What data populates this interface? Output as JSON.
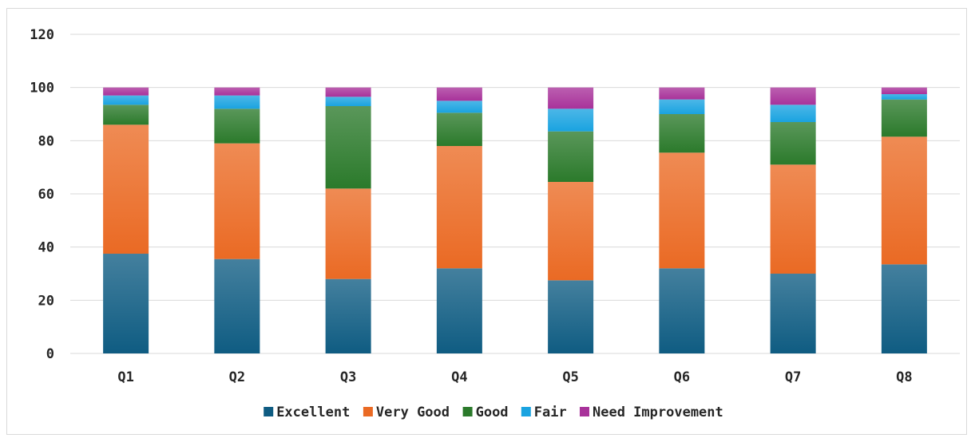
{
  "chart_data": {
    "type": "bar",
    "stacked": true,
    "categories": [
      "Q1",
      "Q2",
      "Q3",
      "Q4",
      "Q5",
      "Q6",
      "Q7",
      "Q8"
    ],
    "series": [
      {
        "name": "Excellent",
        "color": "#0f5c82",
        "values": [
          37.5,
          35.5,
          28.0,
          32.0,
          27.5,
          32.0,
          30.0,
          33.5
        ]
      },
      {
        "name": "Very Good",
        "color": "#ea6a24",
        "values": [
          48.5,
          43.5,
          34.0,
          46.0,
          37.0,
          43.5,
          41.0,
          48.0
        ]
      },
      {
        "name": "Good",
        "color": "#2b7a2b",
        "values": [
          7.5,
          13.0,
          31.0,
          12.5,
          19.0,
          14.5,
          16.0,
          14.0
        ]
      },
      {
        "name": "Fair",
        "color": "#1aa3e0",
        "values": [
          3.5,
          5.0,
          3.5,
          4.5,
          8.5,
          5.5,
          6.5,
          2.0
        ]
      },
      {
        "name": "Need Improvement",
        "color": "#a8329a",
        "values": [
          3.0,
          3.0,
          3.5,
          5.0,
          8.0,
          4.5,
          6.5,
          2.5
        ]
      }
    ],
    "y_ticks": [
      "0",
      "20",
      "40",
      "60",
      "80",
      "100",
      "120"
    ],
    "ylim": [
      0,
      120
    ],
    "grid": true,
    "legend_position": "bottom",
    "title": "",
    "xlabel": "",
    "ylabel": ""
  }
}
